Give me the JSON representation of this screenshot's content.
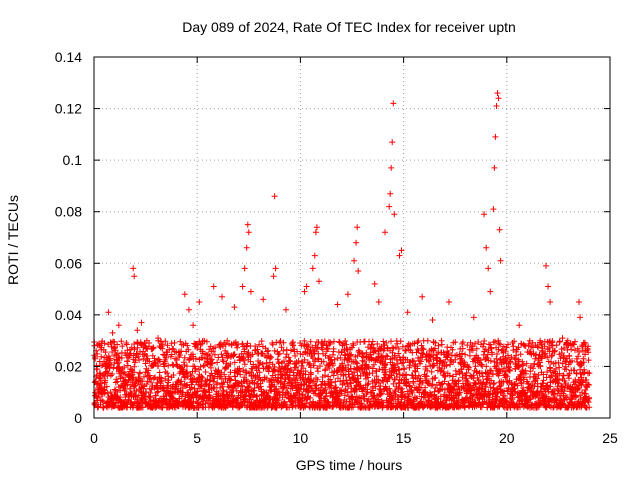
{
  "chart_data": {
    "type": "scatter",
    "title": "Day 089 of 2024, Rate Of TEC Index for receiver uptn",
    "xlabel": "GPS time / hours",
    "ylabel": "ROTI / TECUs",
    "xlim": [
      0,
      25
    ],
    "ylim": [
      0,
      0.14
    ],
    "x_ticks": [
      0,
      5,
      10,
      15,
      20,
      25
    ],
    "x_tick_labels": [
      "0",
      "5",
      "10",
      "15",
      "20",
      "25"
    ],
    "y_ticks": [
      0,
      0.02,
      0.04,
      0.06,
      0.08,
      0.1,
      0.12,
      0.14
    ],
    "y_tick_labels": [
      "0",
      "0.02",
      "0.04",
      "0.06",
      "0.08",
      "0.1",
      "0.12",
      "0.14"
    ],
    "grid": true,
    "marker": "plus",
    "color": "#ff0000",
    "series": [
      {
        "name": "ROTI",
        "background_band": {
          "x_range": [
            0,
            24
          ],
          "y_typical": [
            0.004,
            0.03
          ]
        },
        "points": [
          [
            0.3,
            0.028
          ],
          [
            0.7,
            0.041
          ],
          [
            0.9,
            0.033
          ],
          [
            1.2,
            0.036
          ],
          [
            1.9,
            0.058
          ],
          [
            1.95,
            0.055
          ],
          [
            2.1,
            0.034
          ],
          [
            2.3,
            0.037
          ],
          [
            3.1,
            0.031
          ],
          [
            4.4,
            0.048
          ],
          [
            4.6,
            0.042
          ],
          [
            4.8,
            0.036
          ],
          [
            5.1,
            0.045
          ],
          [
            5.8,
            0.051
          ],
          [
            6.2,
            0.047
          ],
          [
            6.8,
            0.043
          ],
          [
            7.2,
            0.051
          ],
          [
            7.3,
            0.058
          ],
          [
            7.4,
            0.066
          ],
          [
            7.45,
            0.075
          ],
          [
            7.5,
            0.072
          ],
          [
            7.6,
            0.049
          ],
          [
            8.2,
            0.046
          ],
          [
            8.7,
            0.055
          ],
          [
            8.75,
            0.086
          ],
          [
            8.8,
            0.058
          ],
          [
            9.3,
            0.042
          ],
          [
            10.2,
            0.049
          ],
          [
            10.3,
            0.051
          ],
          [
            10.6,
            0.058
          ],
          [
            10.7,
            0.063
          ],
          [
            10.75,
            0.072
          ],
          [
            10.8,
            0.074
          ],
          [
            10.9,
            0.053
          ],
          [
            11.8,
            0.044
          ],
          [
            12.3,
            0.048
          ],
          [
            12.6,
            0.061
          ],
          [
            12.7,
            0.068
          ],
          [
            12.75,
            0.074
          ],
          [
            12.8,
            0.057
          ],
          [
            13.6,
            0.052
          ],
          [
            13.8,
            0.045
          ],
          [
            14.1,
            0.072
          ],
          [
            14.3,
            0.082
          ],
          [
            14.35,
            0.087
          ],
          [
            14.4,
            0.097
          ],
          [
            14.45,
            0.107
          ],
          [
            14.5,
            0.122
          ],
          [
            14.55,
            0.079
          ],
          [
            14.8,
            0.063
          ],
          [
            14.9,
            0.065
          ],
          [
            15.2,
            0.041
          ],
          [
            15.9,
            0.047
          ],
          [
            16.4,
            0.038
          ],
          [
            17.2,
            0.045
          ],
          [
            18.4,
            0.039
          ],
          [
            18.9,
            0.079
          ],
          [
            19.0,
            0.066
          ],
          [
            19.1,
            0.058
          ],
          [
            19.2,
            0.049
          ],
          [
            19.35,
            0.081
          ],
          [
            19.4,
            0.097
          ],
          [
            19.45,
            0.109
          ],
          [
            19.5,
            0.121
          ],
          [
            19.55,
            0.126
          ],
          [
            19.6,
            0.124
          ],
          [
            19.65,
            0.073
          ],
          [
            19.7,
            0.061
          ],
          [
            20.6,
            0.036
          ],
          [
            21.9,
            0.059
          ],
          [
            22.0,
            0.051
          ],
          [
            22.1,
            0.045
          ],
          [
            22.7,
            0.031
          ],
          [
            23.5,
            0.045
          ],
          [
            23.55,
            0.039
          ],
          [
            23.8,
            0.026
          ]
        ]
      }
    ]
  }
}
